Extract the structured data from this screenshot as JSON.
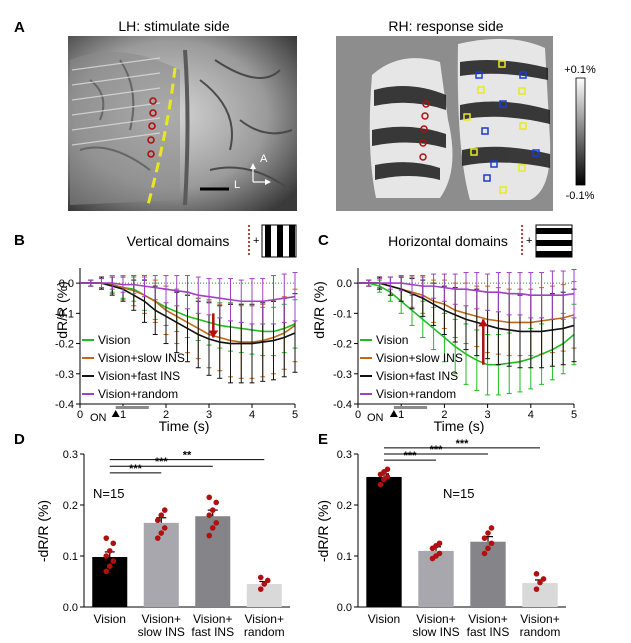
{
  "colors": {
    "vision": "#22bb22",
    "slow": "#c06818",
    "fast": "#111111",
    "random": "#a040c8",
    "red_dots": "#b01010",
    "yellow_dash": "#e8e820",
    "bar_vision": "#000000",
    "bar_slow": "#a7a7ad",
    "bar_fast": "#848489",
    "bar_random": "#d9d9d9"
  },
  "panel_a": {
    "label": "A",
    "left_title": "LH: stimulate side",
    "right_title": "RH: response side",
    "compass_a": "A",
    "compass_l": "L",
    "scale_top": "+0.1%",
    "scale_bottom": "-0.1%"
  },
  "chart_data": [
    {
      "panel": "B",
      "type": "line",
      "title": "Vertical domains",
      "icon": "vertical-grating",
      "xlabel": "Time (s)",
      "ylabel": "dR/R (%)",
      "xlim": [
        0,
        5
      ],
      "ylim": [
        -0.4,
        0.05
      ],
      "xticks": [
        "0",
        "1",
        "2",
        "3",
        "4",
        "5"
      ],
      "yticks": [
        "0.0",
        "-0.1",
        "-0.2",
        "-0.3",
        "-0.4"
      ],
      "ytick_values": [
        0,
        -0.1,
        -0.2,
        -0.3,
        -0.4
      ],
      "stim_label": "ON",
      "stim_on": [
        0.83,
        1.6
      ],
      "arrow_time": 3.1,
      "arrow_from": -0.1,
      "arrow_to": -0.18,
      "x": [
        0.25,
        0.5,
        0.75,
        1.0,
        1.25,
        1.5,
        1.75,
        2.0,
        2.25,
        2.5,
        2.75,
        3.0,
        3.25,
        3.5,
        3.75,
        4.0,
        4.25,
        4.5,
        4.75,
        5.0
      ],
      "series": [
        {
          "name": "Vision",
          "color_key": "vision",
          "values": [
            0,
            0,
            -0.005,
            -0.015,
            -0.02,
            -0.04,
            -0.06,
            -0.08,
            -0.095,
            -0.11,
            -0.12,
            -0.13,
            -0.14,
            -0.145,
            -0.15,
            -0.155,
            -0.16,
            -0.16,
            -0.15,
            -0.135
          ],
          "err": [
            0.01,
            0.015,
            0.025,
            0.035,
            0.04,
            0.05,
            0.06,
            0.06,
            0.065,
            0.07,
            0.07,
            0.075,
            0.075,
            0.08,
            0.08,
            0.08,
            0.08,
            0.08,
            0.08,
            0.08
          ]
        },
        {
          "name": "Vision+slow INS",
          "color_key": "slow",
          "values": [
            0,
            0,
            -0.005,
            -0.015,
            -0.025,
            -0.04,
            -0.06,
            -0.09,
            -0.11,
            -0.13,
            -0.15,
            -0.17,
            -0.18,
            -0.19,
            -0.195,
            -0.195,
            -0.19,
            -0.18,
            -0.165,
            -0.14
          ],
          "err": [
            0.01,
            0.02,
            0.03,
            0.04,
            0.05,
            0.06,
            0.07,
            0.08,
            0.09,
            0.1,
            0.1,
            0.11,
            0.11,
            0.12,
            0.12,
            0.12,
            0.12,
            0.12,
            0.12,
            0.12
          ]
        },
        {
          "name": "Vision+fast INS",
          "color_key": "fast",
          "values": [
            0,
            0,
            -0.01,
            -0.02,
            -0.04,
            -0.06,
            -0.09,
            -0.11,
            -0.13,
            -0.15,
            -0.17,
            -0.185,
            -0.195,
            -0.2,
            -0.2,
            -0.2,
            -0.195,
            -0.19,
            -0.18,
            -0.165
          ],
          "err": [
            0.01,
            0.02,
            0.03,
            0.04,
            0.05,
            0.07,
            0.08,
            0.09,
            0.1,
            0.11,
            0.11,
            0.12,
            0.12,
            0.13,
            0.13,
            0.13,
            0.13,
            0.13,
            0.13,
            0.13
          ]
        },
        {
          "name": "Vision+random",
          "color_key": "random",
          "values": [
            0,
            0,
            0,
            -0.005,
            -0.005,
            -0.01,
            -0.015,
            -0.02,
            -0.025,
            -0.03,
            -0.04,
            -0.045,
            -0.05,
            -0.055,
            -0.06,
            -0.06,
            -0.06,
            -0.055,
            -0.05,
            -0.045
          ],
          "err": [
            0.01,
            0.015,
            0.02,
            0.025,
            0.03,
            0.035,
            0.04,
            0.045,
            0.05,
            0.055,
            0.06,
            0.06,
            0.065,
            0.07,
            0.07,
            0.075,
            0.075,
            0.08,
            0.08,
            0.08
          ]
        }
      ],
      "legend": [
        "Vision",
        "Vision+slow INS",
        "Vision+fast INS",
        "Vision+random"
      ]
    },
    {
      "panel": "C",
      "type": "line",
      "title": "Horizontal domains",
      "icon": "horizontal-grating",
      "xlabel": "Time (s)",
      "ylabel": "dR/R (%)",
      "xlim": [
        0,
        5
      ],
      "ylim": [
        -0.4,
        0.05
      ],
      "xticks": [
        "0",
        "1",
        "2",
        "3",
        "4",
        "5"
      ],
      "yticks": [
        "0.0",
        "-0.1",
        "-0.2",
        "-0.3",
        "-0.4"
      ],
      "ytick_values": [
        0,
        -0.1,
        -0.2,
        -0.3,
        -0.4
      ],
      "stim_label": "ON",
      "stim_on": [
        0.83,
        1.6
      ],
      "arrow_time": 2.9,
      "arrow_from": -0.27,
      "arrow_to": -0.12,
      "x": [
        0.25,
        0.5,
        0.75,
        1.0,
        1.25,
        1.5,
        1.75,
        2.0,
        2.25,
        2.5,
        2.75,
        3.0,
        3.25,
        3.5,
        3.75,
        4.0,
        4.25,
        4.5,
        4.75,
        5.0
      ],
      "series": [
        {
          "name": "Vision",
          "color_key": "vision",
          "values": [
            0,
            -0.01,
            -0.03,
            -0.06,
            -0.09,
            -0.12,
            -0.15,
            -0.18,
            -0.21,
            -0.235,
            -0.255,
            -0.27,
            -0.27,
            -0.265,
            -0.26,
            -0.25,
            -0.235,
            -0.22,
            -0.2,
            -0.17
          ],
          "err": [
            0.01,
            0.02,
            0.03,
            0.04,
            0.05,
            0.06,
            0.07,
            0.08,
            0.09,
            0.1,
            0.1,
            0.1,
            0.1,
            0.1,
            0.1,
            0.1,
            0.1,
            0.1,
            0.1,
            0.1
          ]
        },
        {
          "name": "Vision+slow INS",
          "color_key": "slow",
          "values": [
            0,
            0,
            -0.01,
            -0.02,
            -0.03,
            -0.04,
            -0.06,
            -0.07,
            -0.09,
            -0.1,
            -0.11,
            -0.12,
            -0.125,
            -0.13,
            -0.13,
            -0.13,
            -0.125,
            -0.12,
            -0.115,
            -0.105
          ],
          "err": [
            0.01,
            0.02,
            0.03,
            0.04,
            0.05,
            0.06,
            0.07,
            0.08,
            0.09,
            0.1,
            0.1,
            0.11,
            0.11,
            0.11,
            0.11,
            0.11,
            0.11,
            0.11,
            0.11,
            0.11
          ]
        },
        {
          "name": "Vision+fast INS",
          "color_key": "fast",
          "values": [
            0,
            0,
            -0.01,
            -0.02,
            -0.035,
            -0.05,
            -0.07,
            -0.09,
            -0.105,
            -0.12,
            -0.13,
            -0.14,
            -0.15,
            -0.155,
            -0.16,
            -0.16,
            -0.16,
            -0.155,
            -0.15,
            -0.14
          ],
          "err": [
            0.01,
            0.02,
            0.03,
            0.04,
            0.05,
            0.06,
            0.07,
            0.08,
            0.09,
            0.1,
            0.11,
            0.11,
            0.12,
            0.12,
            0.12,
            0.12,
            0.12,
            0.12,
            0.12,
            0.12
          ]
        },
        {
          "name": "Vision+random",
          "color_key": "random",
          "values": [
            0,
            0,
            0,
            0,
            -0.005,
            -0.01,
            -0.01,
            -0.015,
            -0.02,
            -0.02,
            -0.025,
            -0.03,
            -0.03,
            -0.035,
            -0.035,
            -0.04,
            -0.04,
            -0.04,
            -0.04,
            -0.035
          ],
          "err": [
            0.01,
            0.015,
            0.02,
            0.025,
            0.03,
            0.035,
            0.04,
            0.045,
            0.05,
            0.055,
            0.06,
            0.06,
            0.065,
            0.07,
            0.07,
            0.075,
            0.075,
            0.08,
            0.08,
            0.08
          ]
        }
      ],
      "legend": [
        "Vision",
        "Vision+slow INS",
        "Vision+fast INS",
        "Vision+random"
      ]
    },
    {
      "panel": "D",
      "type": "bar",
      "ylabel": "-dR/R (%)",
      "ylim": [
        0,
        0.3
      ],
      "yticks": [
        "0.0",
        "0.1",
        "0.2",
        "0.3"
      ],
      "ytick_values": [
        0,
        0.1,
        0.2,
        0.3
      ],
      "n_label": "N=15",
      "categories": [
        [
          "Vision"
        ],
        [
          "Vision+",
          "slow INS"
        ],
        [
          "Vision+",
          "fast INS"
        ],
        [
          "Vision+",
          "random"
        ]
      ],
      "bar_color_keys": [
        "bar_vision",
        "bar_slow",
        "bar_fast",
        "bar_random"
      ],
      "values": [
        0.098,
        0.165,
        0.178,
        0.045
      ],
      "sem": [
        0.01,
        0.01,
        0.012,
        0.005
      ],
      "points": [
        [
          0.07,
          0.08,
          0.09,
          0.1,
          0.11,
          0.125,
          0.135
        ],
        [
          0.135,
          0.145,
          0.155,
          0.17,
          0.18,
          0.19
        ],
        [
          0.14,
          0.155,
          0.165,
          0.18,
          0.19,
          0.205,
          0.215
        ],
        [
          0.035,
          0.045,
          0.052,
          0.058
        ]
      ],
      "significance": [
        {
          "from": 0,
          "to": 1,
          "text": "***",
          "level": 0.263
        },
        {
          "from": 0,
          "to": 2,
          "text": "***",
          "level": 0.276
        },
        {
          "from": 0,
          "to": 3,
          "text": "**",
          "level": 0.289
        }
      ]
    },
    {
      "panel": "E",
      "type": "bar",
      "ylabel": "-dR/R (%)",
      "ylim": [
        0,
        0.3
      ],
      "yticks": [
        "0.0",
        "0.1",
        "0.2",
        "0.3"
      ],
      "ytick_values": [
        0,
        0.1,
        0.2,
        0.3
      ],
      "n_label": "N=15",
      "categories": [
        [
          "Vision"
        ],
        [
          "Vision+",
          "slow INS"
        ],
        [
          "Vision+",
          "fast INS"
        ],
        [
          "Vision+",
          "random"
        ]
      ],
      "bar_color_keys": [
        "bar_vision",
        "bar_slow",
        "bar_fast",
        "bar_random"
      ],
      "values": [
        0.255,
        0.11,
        0.128,
        0.047
      ],
      "sem": [
        0.006,
        0.008,
        0.01,
        0.006
      ],
      "points": [
        [
          0.24,
          0.25,
          0.255,
          0.26,
          0.265,
          0.27
        ],
        [
          0.095,
          0.1,
          0.105,
          0.115,
          0.12,
          0.125
        ],
        [
          0.105,
          0.115,
          0.125,
          0.135,
          0.145,
          0.155
        ],
        [
          0.035,
          0.048,
          0.055,
          0.065
        ]
      ],
      "significance": [
        {
          "from": 0,
          "to": 1,
          "text": "***",
          "level": 0.288
        },
        {
          "from": 0,
          "to": 2,
          "text": "***",
          "level": 0.3
        },
        {
          "from": 0,
          "to": 3,
          "text": "***",
          "level": 0.312
        }
      ]
    }
  ]
}
